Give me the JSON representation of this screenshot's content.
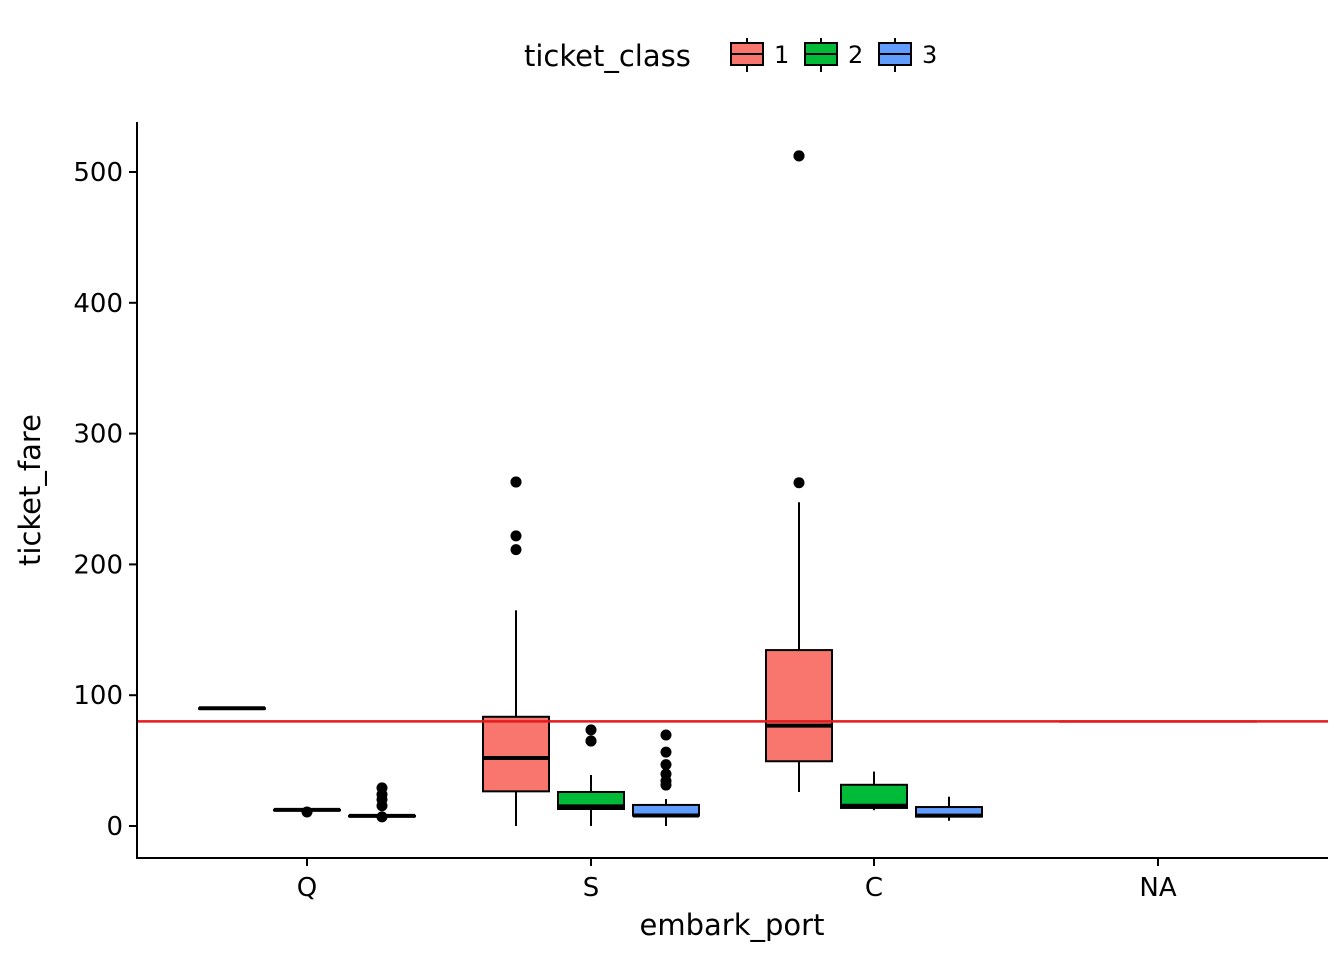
{
  "chart_data": {
    "type": "boxplot",
    "xlabel": "embark_port",
    "ylabel": "ticket_fare",
    "categories": [
      "Q",
      "S",
      "C",
      "NA"
    ],
    "ylim": [
      -25,
      537
    ],
    "yticks": [
      0,
      100,
      200,
      300,
      400,
      500
    ],
    "grid": false,
    "legend": {
      "title": "ticket_class",
      "position": "top",
      "entries": [
        {
          "label": "1",
          "color": "#F8766D"
        },
        {
          "label": "2",
          "color": "#00BA38"
        },
        {
          "label": "3",
          "color": "#619CFF"
        }
      ]
    },
    "reference_line": {
      "y": 80,
      "color": "#E41A1C"
    },
    "series": [
      {
        "name": "1",
        "color": "#F8766D",
        "boxes": [
          {
            "category": "Q",
            "min": 90,
            "q1": 90,
            "median": 90,
            "q3": 90,
            "max": 90,
            "outliers": []
          },
          {
            "category": "S",
            "min": 0,
            "q1": 26.5,
            "median": 52,
            "q3": 83.5,
            "max": 164.9,
            "outliers": [
              211.3,
              221.8,
              263,
              263
            ]
          },
          {
            "category": "C",
            "min": 26,
            "q1": 49.5,
            "median": 76.7,
            "q3": 134.5,
            "max": 247.5,
            "outliers": [
              262.4,
              512.3,
              512.3
            ]
          },
          {
            "category": "NA",
            "min": 80,
            "q1": 80,
            "median": 80,
            "q3": 80,
            "max": 80,
            "outliers": []
          }
        ]
      },
      {
        "name": "2",
        "color": "#00BA38",
        "boxes": [
          {
            "category": "Q",
            "min": 12.35,
            "q1": 12.35,
            "median": 12.35,
            "q3": 12.35,
            "max": 12.35,
            "outliers": [
              10.7
            ]
          },
          {
            "category": "S",
            "min": 0,
            "q1": 13,
            "median": 15,
            "q3": 26,
            "max": 39,
            "outliers": [
              65,
              65,
              73.5
            ]
          },
          {
            "category": "C",
            "min": 12.1,
            "q1": 13.8,
            "median": 15.5,
            "q3": 31.5,
            "max": 41.6,
            "outliers": []
          }
        ]
      },
      {
        "name": "3",
        "color": "#619CFF",
        "boxes": [
          {
            "category": "Q",
            "min": 6.75,
            "q1": 7.75,
            "median": 7.75,
            "q3": 7.75,
            "max": 7.9,
            "outliers": [
              7,
              15.5,
              20.2,
              24.1,
              29.1
            ]
          },
          {
            "category": "S",
            "min": 0,
            "q1": 7.9,
            "median": 8.05,
            "q3": 16.1,
            "max": 20.6,
            "outliers": [
              31.3,
              34.4,
              39.7,
              46.9,
              56.5,
              69.55
            ]
          },
          {
            "category": "C",
            "min": 4,
            "q1": 7.2,
            "median": 7.9,
            "q3": 14.5,
            "max": 22.4,
            "outliers": []
          }
        ]
      }
    ]
  }
}
